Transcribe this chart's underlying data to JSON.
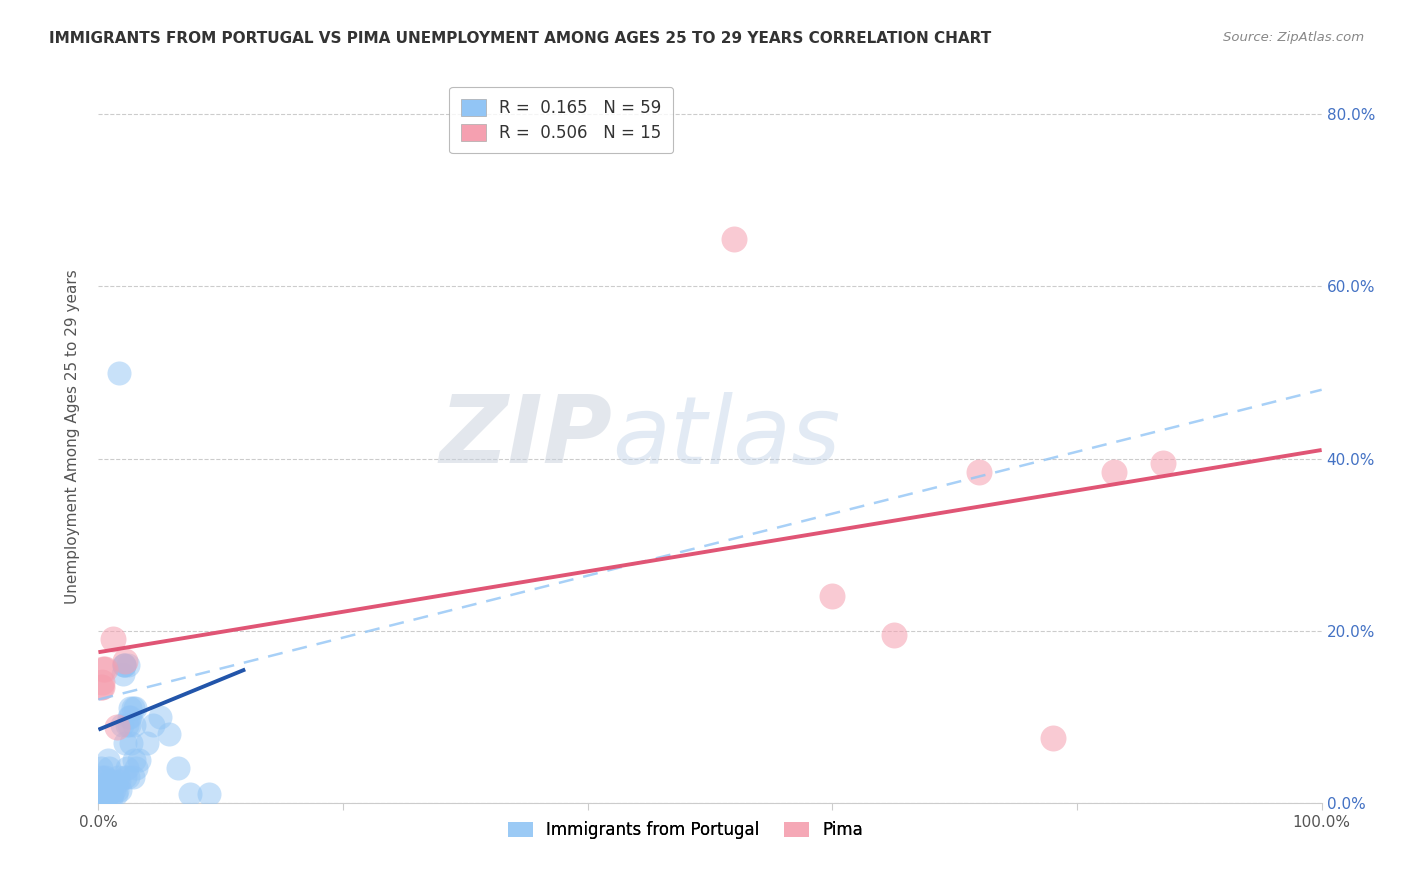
{
  "title": "IMMIGRANTS FROM PORTUGAL VS PIMA UNEMPLOYMENT AMONG AGES 25 TO 29 YEARS CORRELATION CHART",
  "source": "Source: ZipAtlas.com",
  "ylabel": "Unemployment Among Ages 25 to 29 years",
  "xlim": [
    0.0,
    1.0
  ],
  "ylim": [
    0.0,
    0.85
  ],
  "x_ticks": [
    0.0,
    0.2,
    0.4,
    0.6,
    0.8,
    1.0
  ],
  "x_tick_labels": [
    "0.0%",
    "",
    "",
    "",
    "",
    "100.0%"
  ],
  "y_ticks": [
    0.0,
    0.2,
    0.4,
    0.6,
    0.8
  ],
  "y_tick_labels_right": [
    "0.0%",
    "20.0%",
    "40.0%",
    "60.0%",
    "80.0%"
  ],
  "legend_blue_R": "0.165",
  "legend_blue_N": "59",
  "legend_pink_R": "0.506",
  "legend_pink_N": "15",
  "blue_color": "#92C5F5",
  "pink_color": "#F5A0B0",
  "blue_line_color": "#2255AA",
  "pink_line_color": "#E05575",
  "blue_scatter": [
    [
      0.001,
      0.015
    ],
    [
      0.001,
      0.025
    ],
    [
      0.002,
      0.02
    ],
    [
      0.002,
      0.04
    ],
    [
      0.003,
      0.03
    ],
    [
      0.003,
      0.01
    ],
    [
      0.004,
      0.008
    ],
    [
      0.004,
      0.02
    ],
    [
      0.005,
      0.01
    ],
    [
      0.005,
      0.03
    ],
    [
      0.006,
      0.02
    ],
    [
      0.006,
      0.01
    ],
    [
      0.007,
      0.008
    ],
    [
      0.007,
      0.02
    ],
    [
      0.008,
      0.01
    ],
    [
      0.008,
      0.05
    ],
    [
      0.009,
      0.04
    ],
    [
      0.009,
      0.025
    ],
    [
      0.01,
      0.015
    ],
    [
      0.01,
      0.005
    ],
    [
      0.011,
      0.01
    ],
    [
      0.012,
      0.025
    ],
    [
      0.013,
      0.015
    ],
    [
      0.014,
      0.01
    ],
    [
      0.015,
      0.015
    ],
    [
      0.016,
      0.03
    ],
    [
      0.017,
      0.025
    ],
    [
      0.018,
      0.015
    ],
    [
      0.019,
      0.09
    ],
    [
      0.02,
      0.15
    ],
    [
      0.021,
      0.16
    ],
    [
      0.022,
      0.03
    ],
    [
      0.023,
      0.09
    ],
    [
      0.024,
      0.16
    ],
    [
      0.025,
      0.1
    ],
    [
      0.026,
      0.11
    ],
    [
      0.027,
      0.07
    ],
    [
      0.028,
      0.11
    ],
    [
      0.029,
      0.09
    ],
    [
      0.03,
      0.11
    ],
    [
      0.017,
      0.5
    ],
    [
      0.021,
      0.16
    ],
    [
      0.021,
      0.16
    ],
    [
      0.022,
      0.07
    ],
    [
      0.023,
      0.04
    ],
    [
      0.024,
      0.03
    ],
    [
      0.025,
      0.09
    ],
    [
      0.026,
      0.1
    ],
    [
      0.028,
      0.03
    ],
    [
      0.029,
      0.05
    ],
    [
      0.031,
      0.04
    ],
    [
      0.033,
      0.05
    ],
    [
      0.04,
      0.07
    ],
    [
      0.045,
      0.09
    ],
    [
      0.05,
      0.1
    ],
    [
      0.058,
      0.08
    ],
    [
      0.065,
      0.04
    ],
    [
      0.075,
      0.01
    ],
    [
      0.09,
      0.01
    ]
  ],
  "pink_scatter": [
    [
      0.002,
      0.135
    ],
    [
      0.003,
      0.135
    ],
    [
      0.003,
      0.14
    ],
    [
      0.004,
      0.155
    ],
    [
      0.005,
      0.155
    ],
    [
      0.012,
      0.19
    ],
    [
      0.015,
      0.088
    ],
    [
      0.022,
      0.165
    ],
    [
      0.52,
      0.655
    ],
    [
      0.6,
      0.24
    ],
    [
      0.65,
      0.195
    ],
    [
      0.72,
      0.385
    ],
    [
      0.78,
      0.075
    ],
    [
      0.83,
      0.385
    ],
    [
      0.87,
      0.395
    ]
  ],
  "blue_trendline": {
    "x_start": 0.0,
    "y_start": 0.085,
    "x_end": 0.12,
    "y_end": 0.155
  },
  "blue_dash_trendline": {
    "x_start": 0.0,
    "y_start": 0.12,
    "x_end": 1.0,
    "y_end": 0.48
  },
  "pink_trendline": {
    "x_start": 0.0,
    "y_start": 0.175,
    "x_end": 1.0,
    "y_end": 0.41
  },
  "watermark_zip": "ZIP",
  "watermark_atlas": "atlas",
  "background_color": "#ffffff",
  "grid_color": "#cccccc"
}
